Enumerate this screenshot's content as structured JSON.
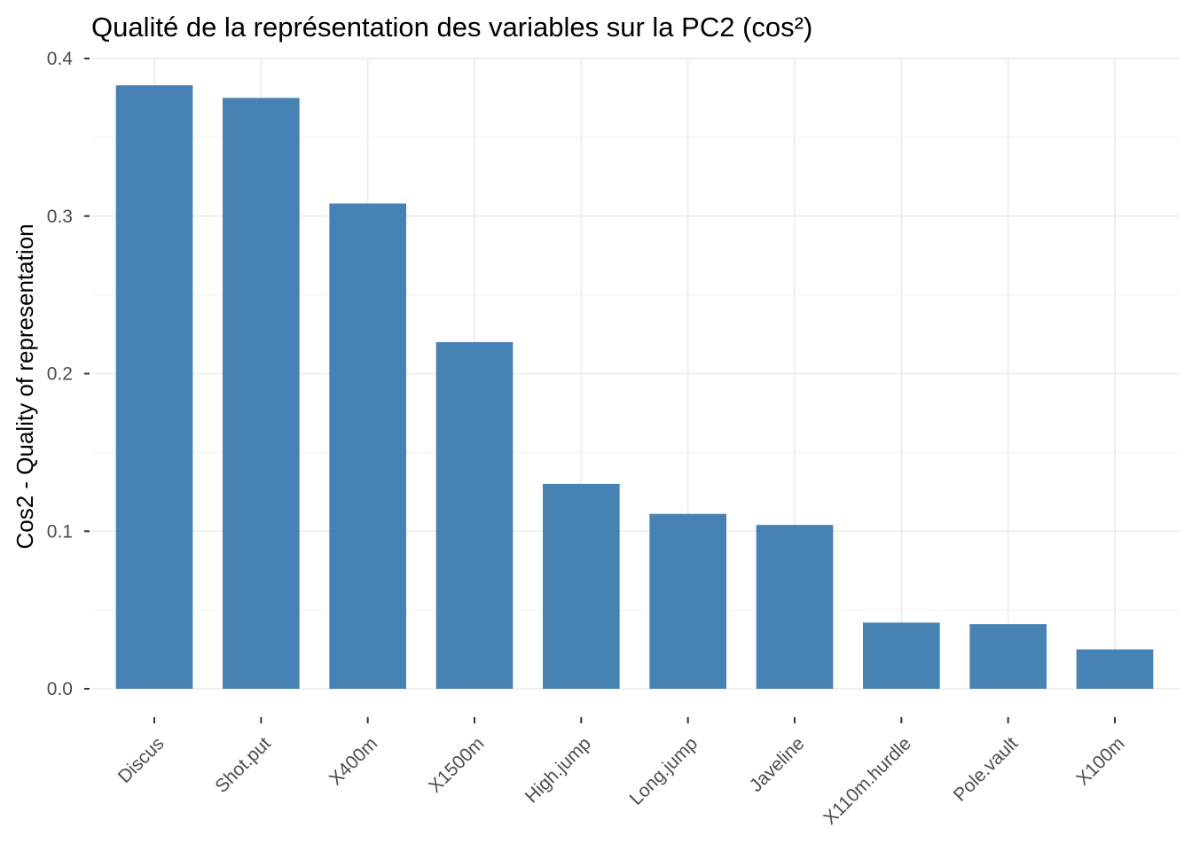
{
  "chart_data": {
    "type": "bar",
    "title": "Qualité de la représentation des variables sur la PC2 (cos²)",
    "xlabel": "",
    "ylabel": "Cos2 - Quality of representation",
    "categories": [
      "Discus",
      "Shot.put",
      "X400m",
      "X1500m",
      "High.jump",
      "Long.jump",
      "Javeline",
      "X110m.hurdle",
      "Pole.vault",
      "X100m"
    ],
    "values": [
      0.383,
      0.375,
      0.308,
      0.22,
      0.13,
      0.111,
      0.104,
      0.042,
      0.041,
      0.025
    ],
    "ylim": [
      0,
      0.4
    ],
    "yticks": [
      0.0,
      0.1,
      0.2,
      0.3,
      0.4
    ],
    "ytick_labels": [
      "0.0",
      "0.1",
      "0.2",
      "0.3",
      "0.4"
    ],
    "grid": true,
    "legend": "none",
    "bar_color": "#4682b4"
  }
}
